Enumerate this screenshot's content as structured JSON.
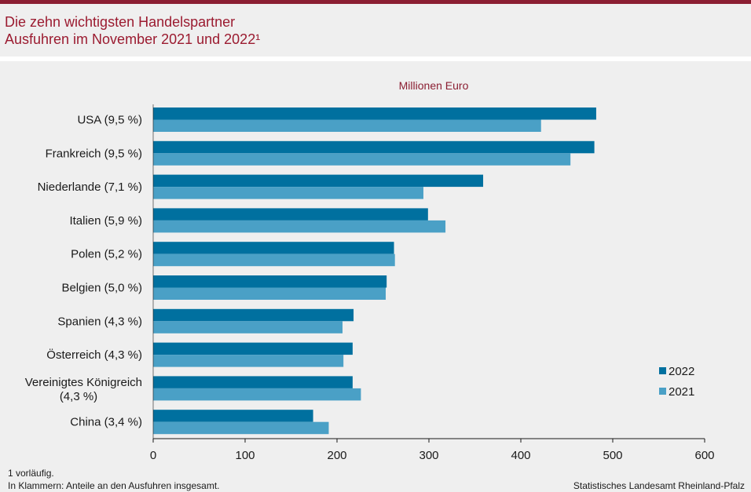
{
  "title_line1": "Die zehn wichtigsten Handelspartner",
  "title_line2": "Ausfuhren im November 2021 und 2022¹",
  "footnote1": "1 vorläufig.",
  "footnote2": "In Klammern: Anteile an den Ausfuhren insgesamt.",
  "source": "Statistisches Landesamt Rheinland-Pfalz",
  "colors": {
    "accent": "#8b1e32",
    "series_2022": "#00709f",
    "series_2021": "#4aa0c6"
  },
  "chart_data": {
    "type": "bar",
    "orientation": "horizontal",
    "unit_label": "Millionen Euro",
    "categories": [
      [
        "USA (9,5 %)"
      ],
      [
        "Frankreich (9,5 %)"
      ],
      [
        "Niederlande (7,1 %)"
      ],
      [
        "Italien (5,9 %)"
      ],
      [
        "Polen (5,2 %)"
      ],
      [
        "Belgien (5,0 %)"
      ],
      [
        "Spanien (4,3 %)"
      ],
      [
        "Österreich (4,3 %)"
      ],
      [
        "Vereinigtes Königreich",
        "(4,3 %)"
      ],
      [
        "China (3,4 %)"
      ]
    ],
    "series": [
      {
        "name": "2022",
        "values": [
          482,
          480,
          359,
          299,
          262,
          254,
          218,
          217,
          217,
          174
        ]
      },
      {
        "name": "2021",
        "values": [
          422,
          454,
          294,
          318,
          263,
          253,
          206,
          207,
          226,
          191
        ]
      }
    ],
    "xlim": [
      0,
      600
    ],
    "xticks": [
      0,
      100,
      200,
      300,
      400,
      500,
      600
    ],
    "grid": false,
    "legend_position": "right"
  }
}
